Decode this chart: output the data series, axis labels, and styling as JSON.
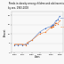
{
  "title_lines": [
    "Trends in obesity among children and adolescents,",
    "by sex, 1963-2008"
  ],
  "xlabel": "Years",
  "ylabel": "Percent",
  "background_color": "#f8f8f8",
  "series": [
    {
      "label": "Boys",
      "color": "#4472c4",
      "x": [
        1963,
        1966,
        1971,
        1974,
        1976,
        1980,
        1988,
        1994,
        1999,
        2000,
        2001,
        2002,
        2003,
        2004,
        2006,
        2008
      ],
      "y": [
        4.0,
        4.0,
        4.0,
        4.5,
        5.0,
        6.5,
        11.0,
        13.0,
        14.0,
        14.5,
        15.0,
        15.0,
        16.0,
        17.0,
        17.5,
        19.5
      ]
    },
    {
      "label": "Girls",
      "color": "#ed7d31",
      "x": [
        1963,
        1966,
        1971,
        1974,
        1976,
        1980,
        1988,
        1994,
        1999,
        2000,
        2001,
        2002,
        2003,
        2004,
        2006,
        2008
      ],
      "y": [
        4.5,
        4.5,
        4.5,
        4.0,
        5.5,
        6.5,
        10.0,
        11.0,
        13.5,
        13.5,
        14.0,
        14.0,
        15.0,
        16.0,
        15.5,
        17.0
      ]
    }
  ],
  "ylim": [
    0,
    22
  ],
  "xlim": [
    1960,
    2011
  ],
  "yticks": [
    0,
    5,
    10,
    15,
    20
  ],
  "xticks": [
    1963,
    1971,
    1980,
    1988,
    1999,
    2008
  ],
  "title_fontsize": 1.8,
  "label_fontsize": 1.8,
  "tick_fontsize": 1.6,
  "annotation_fontsize": 1.6,
  "linewidth": 0.35,
  "markersize": 0.8,
  "markeredgewidth": 0.3
}
